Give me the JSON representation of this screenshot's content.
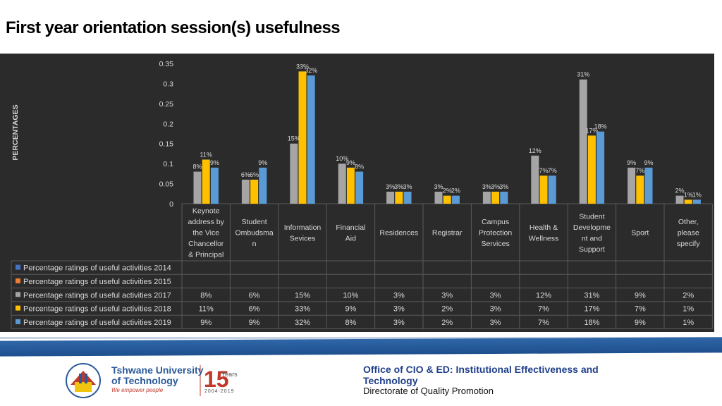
{
  "title": "First year orientation session(s) usefulness",
  "chart_data": {
    "type": "bar",
    "ylabel": "PERCENTAGES",
    "ylim": [
      0,
      0.35
    ],
    "yticks": [
      "0",
      "0.05",
      "0.1",
      "0.15",
      "0.2",
      "0.25",
      "0.3",
      "0.35"
    ],
    "categories": [
      [
        "Keynote",
        "address by",
        "the Vice",
        "Chancellor",
        "& Principal"
      ],
      [
        "Student",
        "Ombudsma",
        "n"
      ],
      [
        "Information",
        "Sevices"
      ],
      [
        "Financial",
        "Aid"
      ],
      [
        "Residences"
      ],
      [
        "Registrar"
      ],
      [
        "Campus",
        "Protection",
        "Services"
      ],
      [
        "Health &",
        "Wellness"
      ],
      [
        "Student",
        "Developme",
        "nt and",
        "Support"
      ],
      [
        "Sport"
      ],
      [
        "Other,",
        "please",
        "specify"
      ]
    ],
    "series": [
      {
        "name": "Percentage ratings of useful activities 2014",
        "color": "#4472c4",
        "values": [
          null,
          null,
          null,
          null,
          null,
          null,
          null,
          null,
          null,
          null,
          null
        ],
        "labels": [
          "",
          "",
          "",
          "",
          "",
          "",
          "",
          "",
          "",
          "",
          ""
        ]
      },
      {
        "name": "Percentage ratings of useful activities 2015",
        "color": "#ed7d31",
        "values": [
          null,
          null,
          null,
          null,
          null,
          null,
          null,
          null,
          null,
          null,
          null
        ],
        "labels": [
          "",
          "",
          "",
          "",
          "",
          "",
          "",
          "",
          "",
          "",
          ""
        ]
      },
      {
        "name": "Percentage ratings of useful activities 2017",
        "color": "#a5a5a5",
        "values": [
          0.08,
          0.06,
          0.15,
          0.1,
          0.03,
          0.03,
          0.03,
          0.12,
          0.31,
          0.09,
          0.02
        ],
        "labels": [
          "8%",
          "6%",
          "15%",
          "10%",
          "3%",
          "3%",
          "3%",
          "12%",
          "31%",
          "9%",
          "2%"
        ]
      },
      {
        "name": "Percentage ratings of useful activities 2018",
        "color": "#ffc000",
        "values": [
          0.11,
          0.06,
          0.33,
          0.09,
          0.03,
          0.02,
          0.03,
          0.07,
          0.17,
          0.07,
          0.01
        ],
        "labels": [
          "11%",
          "6%",
          "33%",
          "9%",
          "3%",
          "2%",
          "3%",
          "7%",
          "17%",
          "7%",
          "1%"
        ]
      },
      {
        "name": "Percentage ratings of useful activities 2019",
        "color": "#5b9bd5",
        "values": [
          0.09,
          0.09,
          0.32,
          0.08,
          0.03,
          0.02,
          0.03,
          0.07,
          0.18,
          0.09,
          0.01
        ],
        "labels": [
          "9%",
          "9%",
          "32%",
          "8%",
          "3%",
          "2%",
          "3%",
          "7%",
          "18%",
          "9%",
          "1%"
        ]
      }
    ]
  },
  "footer": {
    "university_line1": "Tshwane University",
    "university_line2": "of Technology",
    "tagline": "We empower people",
    "years_number": "15",
    "years_word": "Years",
    "years_range": "2004-2019",
    "office_line1": "Office of CIO & ED: Institutional  Effectiveness and Technology",
    "office_line2": "Directorate of Quality Promotion"
  }
}
